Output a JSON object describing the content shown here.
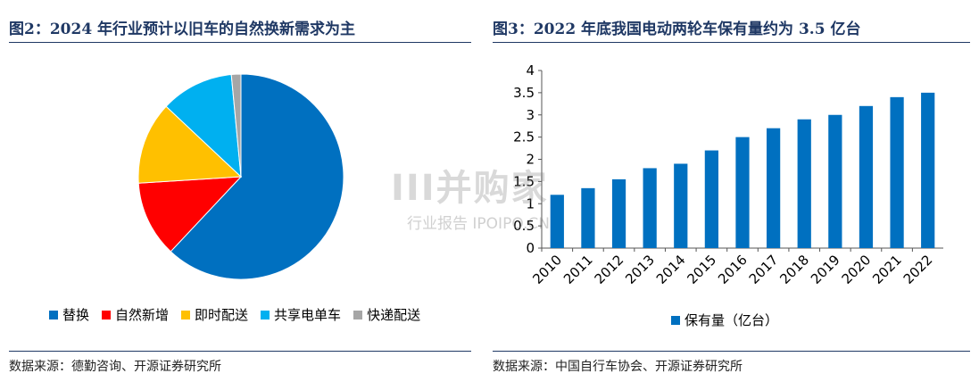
{
  "left": {
    "title": "图2：2024 年行业预计以旧车的自然换新需求为主",
    "source": "数据来源：德勤咨询、开源证券研究所"
  },
  "right": {
    "title": "图3：2022 年底我国电动两轮车保有量约为 3.5 亿台",
    "source": "数据来源：中国自行车协会、开源证券研究所"
  },
  "watermark": {
    "main": "III并购家",
    "sub": "行业报告 IPOIPO.CN"
  },
  "chart_data": [
    {
      "type": "pie",
      "labels": [
        "替换",
        "自然新增",
        "即时配送",
        "共享电单车",
        "快递配送"
      ],
      "values": [
        62,
        12,
        13,
        11.5,
        1.5
      ],
      "colors": [
        "#0070c0",
        "#ff0000",
        "#ffc000",
        "#00b0f0",
        "#a6a6a6"
      ],
      "legend": "bottom"
    },
    {
      "type": "bar",
      "categories": [
        "2010",
        "2011",
        "2012",
        "2013",
        "2014",
        "2015",
        "2016",
        "2017",
        "2018",
        "2019",
        "2020",
        "2021",
        "2022"
      ],
      "series": [
        {
          "name": "保有量（亿台）",
          "values": [
            1.2,
            1.35,
            1.55,
            1.8,
            1.9,
            2.2,
            2.5,
            2.7,
            2.9,
            3.0,
            3.2,
            3.4,
            3.5
          ]
        }
      ],
      "yticks": [
        "0",
        "0.5",
        "1",
        "1.5",
        "2",
        "2.5",
        "3",
        "3.5",
        "4"
      ],
      "ylim": [
        0,
        4
      ],
      "color": "#0070c0",
      "legend": "bottom"
    }
  ]
}
